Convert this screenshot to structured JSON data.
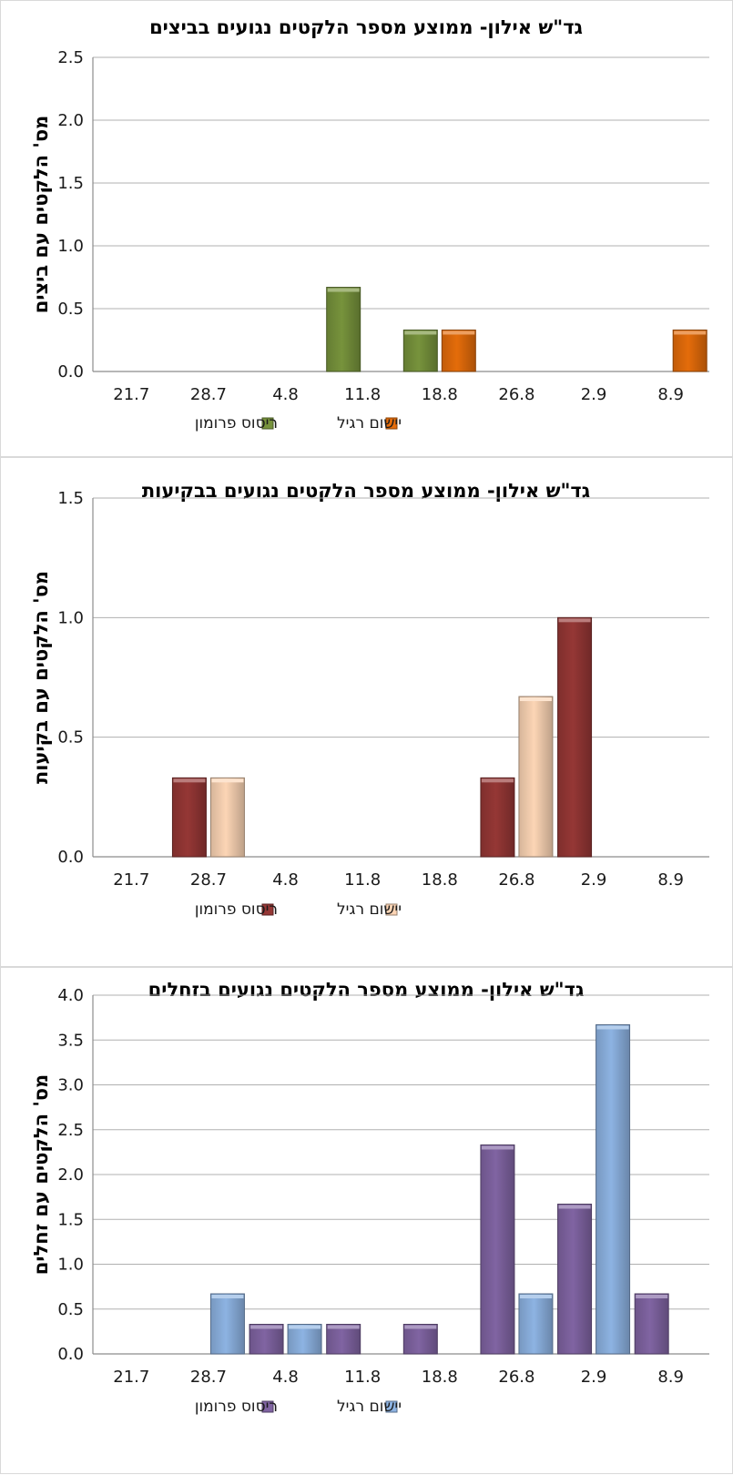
{
  "chart_data": [
    {
      "type": "bar",
      "title": "גד\"ש אילון- ממוצע מספר הלקטים נגועים בביצים",
      "ylabel": "מס' הלקטים עם ביצים",
      "xlabel": "",
      "ylim": [
        0,
        2.5
      ],
      "yticks": [
        "0.0",
        "0.5",
        "1.0",
        "1.5",
        "2.0",
        "2.5"
      ],
      "grid": true,
      "legend_position": "bottom",
      "categories": [
        "21.7",
        "28.7",
        "4.8",
        "11.8",
        "18.8",
        "26.8",
        "2.9",
        "8.9"
      ],
      "series": [
        {
          "name": "ריסוס פרומון",
          "color": "#77933c",
          "values": [
            0,
            0,
            0,
            0.67,
            0.33,
            0,
            0,
            0
          ]
        },
        {
          "name": "יישום רגיל",
          "color": "#e46c0a",
          "values": [
            0,
            0,
            0,
            0,
            0.33,
            0,
            0,
            0.33
          ]
        }
      ]
    },
    {
      "type": "bar",
      "title": "גד\"ש אילון- ממוצע מספר הלקטים נגועים בבקיעות",
      "ylabel": "מס' הלקטים עם בקיעות",
      "xlabel": "",
      "ylim": [
        0,
        1.5
      ],
      "yticks": [
        "0.0",
        "0.5",
        "1.0",
        "1.5"
      ],
      "grid": true,
      "legend_position": "bottom",
      "categories": [
        "21.7",
        "28.7",
        "4.8",
        "11.8",
        "18.8",
        "26.8",
        "2.9",
        "8.9"
      ],
      "series": [
        {
          "name": "ריסוס פרומון",
          "color": "#953735",
          "values": [
            0,
            0.33,
            0,
            0,
            0,
            0.33,
            1.0,
            0
          ]
        },
        {
          "name": "יישום רגיל",
          "color": "#fcd5b5",
          "values": [
            0,
            0.33,
            0,
            0,
            0,
            0.67,
            0,
            0
          ]
        }
      ]
    },
    {
      "type": "bar",
      "title": "גד\"ש אילון- ממוצע מספר הלקטים נגועים בזחלים",
      "ylabel": "מס' הלקטים עם זחלים",
      "xlabel": "",
      "ylim": [
        0,
        4.0
      ],
      "yticks": [
        "0.0",
        "0.5",
        "1.0",
        "1.5",
        "2.0",
        "2.5",
        "3.0",
        "3.5",
        "4.0"
      ],
      "grid": true,
      "legend_position": "bottom",
      "categories": [
        "21.7",
        "28.7",
        "4.8",
        "11.8",
        "18.8",
        "26.8",
        "2.9",
        "8.9"
      ],
      "series": [
        {
          "name": "ריסוס פרומון",
          "color": "#8064a2",
          "values": [
            0,
            0,
            0.33,
            0.33,
            0.33,
            2.33,
            1.67,
            0.67
          ]
        },
        {
          "name": "יישום רגיל",
          "color": "#8db3e2",
          "values": [
            0,
            0.67,
            0.33,
            0,
            0,
            0.67,
            3.67,
            0
          ]
        }
      ]
    }
  ]
}
